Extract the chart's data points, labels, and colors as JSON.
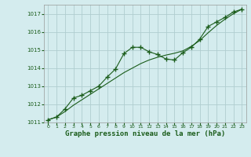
{
  "xlabel": "Graphe pression niveau de la mer (hPa)",
  "bg_color": "#d4ecee",
  "line_color": "#1a5c1a",
  "grid_color": "#b0cdd0",
  "text_color": "#1a5c1a",
  "ylim": [
    1011.0,
    1017.5
  ],
  "xlim": [
    -0.5,
    23.5
  ],
  "yticks": [
    1011,
    1012,
    1013,
    1014,
    1015,
    1016,
    1017
  ],
  "xticks": [
    0,
    1,
    2,
    3,
    4,
    5,
    6,
    7,
    8,
    9,
    10,
    11,
    12,
    13,
    14,
    15,
    16,
    17,
    18,
    19,
    20,
    21,
    22,
    23
  ],
  "hours": [
    0,
    1,
    2,
    3,
    4,
    5,
    6,
    7,
    8,
    9,
    10,
    11,
    12,
    13,
    14,
    15,
    16,
    17,
    18,
    19,
    20,
    21,
    22,
    23
  ],
  "pressure_markers": [
    1011.15,
    1011.3,
    1011.75,
    1012.35,
    1012.5,
    1012.75,
    1013.0,
    1013.5,
    1013.95,
    1014.8,
    1015.15,
    1015.15,
    1014.9,
    1014.75,
    1014.5,
    1014.45,
    1014.85,
    1015.15,
    1015.6,
    1016.3,
    1016.55,
    1016.8,
    1017.1,
    1017.25
  ],
  "pressure_smooth": [
    1011.15,
    1011.3,
    1011.6,
    1011.95,
    1012.25,
    1012.55,
    1012.85,
    1013.15,
    1013.45,
    1013.75,
    1014.0,
    1014.25,
    1014.45,
    1014.6,
    1014.72,
    1014.82,
    1014.95,
    1015.2,
    1015.52,
    1015.95,
    1016.35,
    1016.7,
    1017.0,
    1017.25
  ]
}
